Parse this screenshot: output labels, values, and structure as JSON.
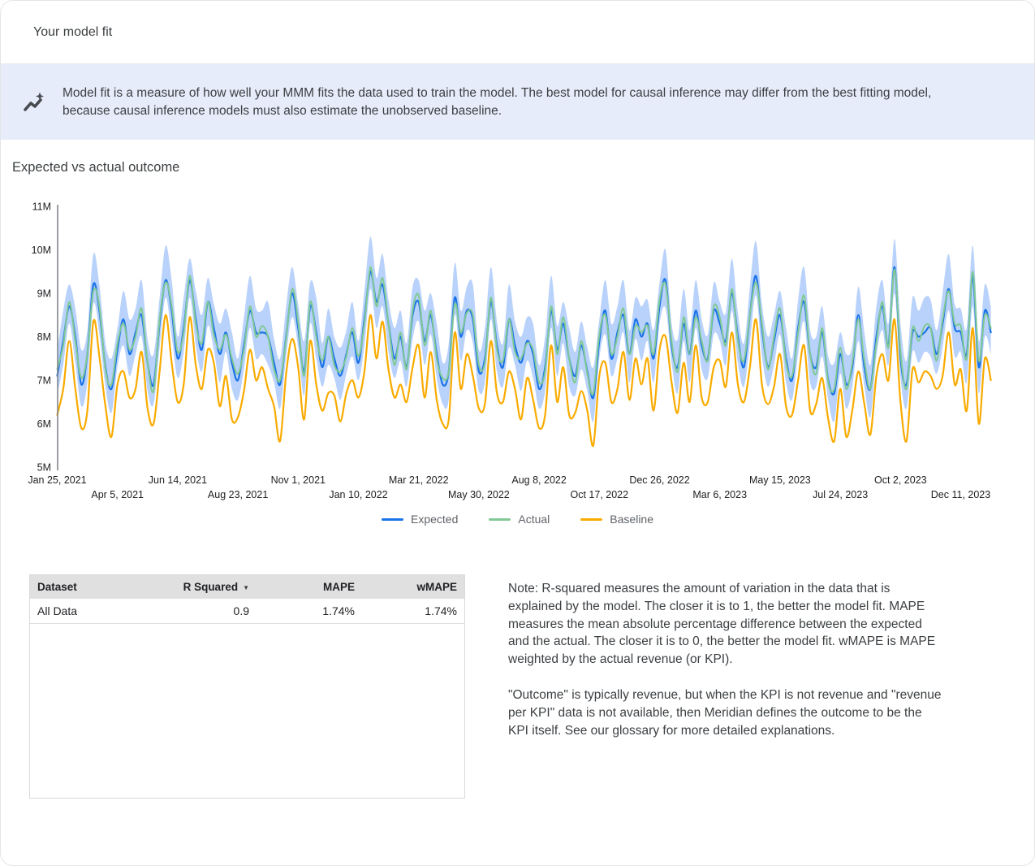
{
  "header": {
    "title": "Your model fit"
  },
  "banner": {
    "icon": "insights-icon",
    "icon_color": "#474B4F",
    "background": "#E6ECFA",
    "text": "Model fit is a measure of how well your MMM fits the data used to train the model. The best model for causal inference may differ from the best fitting model, because causal inference models must also estimate the unobserved baseline."
  },
  "section": {
    "title": "Expected vs actual outcome"
  },
  "chart_data": {
    "type": "line",
    "title": "Expected vs actual outcome",
    "x_unit": "weeks",
    "ylim": [
      5,
      11
    ],
    "y_tick_labels": [
      "11M",
      "10M",
      "9M",
      "8M",
      "7M",
      "6M",
      "5M"
    ],
    "y_tick_values": [
      11,
      10,
      9,
      8,
      7,
      6,
      5
    ],
    "grid": false,
    "legend_position": "bottom",
    "x_ticks_top": [
      {
        "week": 0,
        "label": "Jan 25, 2021"
      },
      {
        "week": 20,
        "label": "Jun 14, 2021"
      },
      {
        "week": 40,
        "label": "Nov 1, 2021"
      },
      {
        "week": 60,
        "label": "Mar 21, 2022"
      },
      {
        "week": 80,
        "label": "Aug 8, 2022"
      },
      {
        "week": 100,
        "label": "Dec 26, 2022"
      },
      {
        "week": 120,
        "label": "May 15, 2023"
      },
      {
        "week": 140,
        "label": "Oct 2, 2023"
      }
    ],
    "x_ticks_bottom": [
      {
        "week": 10,
        "label": "Apr 5, 2021"
      },
      {
        "week": 30,
        "label": "Aug 23, 2021"
      },
      {
        "week": 50,
        "label": "Jan 10, 2022"
      },
      {
        "week": 70,
        "label": "May 30, 2022"
      },
      {
        "week": 90,
        "label": "Oct 17, 2022"
      },
      {
        "week": 110,
        "label": "Mar 6, 2023"
      },
      {
        "week": 130,
        "label": "Jul 24, 2023"
      },
      {
        "week": 150,
        "label": "Dec 11, 2023"
      }
    ],
    "band": {
      "name": "Expected credible interval",
      "color": "#A8C7FA",
      "opacity": 0.8,
      "upper": [
        7.65,
        8.6,
        9.2,
        8.65,
        7.7,
        8.15,
        9.9,
        9.2,
        7.85,
        7.5,
        8.2,
        9.05,
        8.4,
        8.65,
        9.3,
        7.95,
        7.6,
        8.9,
        10.1,
        9.3,
        8.0,
        8.9,
        9.8,
        9.05,
        8.5,
        9.35,
        8.75,
        8.3,
        8.65,
        8.1,
        7.5,
        8.45,
        9.4,
        8.65,
        8.6,
        8.8,
        7.95,
        7.5,
        8.7,
        9.6,
        8.75,
        7.9,
        9.25,
        8.9,
        7.85,
        8.65,
        8.0,
        7.75,
        8.15,
        8.8,
        7.9,
        9.05,
        10.3,
        9.35,
        9.9,
        8.85,
        8.2,
        8.6,
        7.85,
        9.15,
        9.3,
        8.6,
        9.0,
        8.3,
        7.4,
        7.85,
        9.7,
        8.6,
        9.15,
        9.2,
        7.7,
        8.2,
        9.6,
        8.35,
        7.85,
        9.2,
        8.35,
        8.0,
        8.45,
        8.3,
        7.35,
        8.0,
        9.4,
        8.25,
        8.8,
        8.2,
        7.65,
        8.35,
        7.75,
        7.3,
        8.4,
        9.3,
        8.3,
        8.7,
        9.3,
        8.15,
        8.9,
        8.7,
        8.85,
        8.15,
        9.25,
        10.0,
        8.3,
        7.95,
        9.1,
        8.15,
        9.3,
        8.4,
        8.05,
        9.25,
        8.8,
        8.55,
        9.8,
        8.55,
        7.85,
        9.15,
        10.2,
        8.75,
        8.0,
        8.5,
        9.05,
        8.2,
        7.5,
        8.85,
        9.6,
        8.15,
        8.0,
        8.7,
        7.55,
        7.4,
        8.1,
        7.6,
        7.8,
        9.15,
        8.1,
        7.35,
        8.7,
        9.3,
        8.3,
        10.25,
        8.3,
        7.45,
        8.9,
        8.6,
        8.9,
        8.85,
        8.15,
        9.0,
        9.9,
        8.75,
        8.65,
        8.2,
        10.1,
        7.9,
        9.2,
        8.7
      ],
      "lower": [
        6.65,
        7.35,
        8.3,
        7.4,
        6.4,
        6.95,
        8.75,
        8.05,
        6.85,
        6.25,
        7.3,
        7.8,
        7.1,
        7.6,
        8.0,
        6.75,
        6.45,
        7.75,
        8.9,
        8.0,
        7.05,
        7.65,
        8.9,
        7.8,
        7.2,
        8.25,
        7.7,
        6.95,
        7.65,
        6.8,
        6.55,
        7.25,
        8.2,
        7.5,
        7.6,
        7.35,
        6.95,
        6.35,
        7.55,
        8.45,
        7.75,
        6.65,
        8.3,
        7.5,
        6.85,
        7.35,
        7.05,
        6.55,
        7.15,
        7.55,
        7.0,
        7.8,
        9.1,
        8.2,
        8.7,
        7.65,
        7.05,
        7.45,
        6.85,
        7.95,
        8.35,
        7.35,
        8.05,
        7.05,
        6.45,
        6.55,
        8.5,
        7.45,
        8.15,
        7.85,
        6.75,
        6.95,
        8.4,
        7.2,
        6.85,
        7.75,
        7.35,
        6.75,
        7.45,
        7.05,
        6.35,
        6.75,
        8.2,
        7.1,
        7.85,
        6.85,
        6.65,
        7.25,
        6.75,
        6.05,
        7.5,
        8.05,
        7.1,
        7.5,
        8.1,
        6.95,
        7.95,
        7.45,
        7.9,
        6.95,
        8.3,
        8.65,
        7.4,
        6.7,
        7.9,
        6.95,
        8.2,
        7.25,
        7.05,
        8.05,
        7.9,
        7.35,
        8.6,
        7.4,
        6.85,
        7.85,
        8.95,
        7.55,
        6.85,
        7.35,
        8.05,
        6.95,
        6.55,
        7.6,
        8.35,
        6.95,
        6.85,
        7.55,
        6.55,
        6.05,
        7.15,
        6.35,
        6.85,
        7.9,
        6.85,
        6.15,
        7.55,
        8.15,
        7.35,
        9.0,
        7.05,
        6.35,
        7.65,
        7.4,
        7.65,
        7.55,
        7.15,
        7.75,
        8.6,
        7.55,
        7.65,
        6.95,
        8.7,
        6.7,
        8.0,
        7.6
      ]
    },
    "series": [
      {
        "name": "Expected",
        "color": "#1A73E8",
        "values": [
          7.1,
          7.9,
          8.7,
          8.0,
          6.9,
          7.6,
          9.2,
          8.6,
          7.3,
          6.8,
          7.7,
          8.4,
          7.6,
          8.1,
          8.5,
          7.4,
          6.9,
          8.3,
          9.3,
          8.6,
          7.5,
          8.2,
          9.3,
          8.4,
          7.7,
          8.8,
          8.2,
          7.6,
          8.1,
          7.4,
          7.0,
          7.8,
          8.6,
          8.1,
          8.1,
          8.0,
          7.4,
          6.9,
          8.0,
          9.0,
          8.2,
          7.2,
          8.7,
          8.1,
          7.3,
          8.0,
          7.5,
          7.1,
          7.6,
          8.1,
          7.4,
          8.4,
          9.5,
          8.8,
          9.2,
          8.3,
          7.5,
          8.0,
          7.3,
          8.5,
          8.8,
          7.9,
          8.5,
          7.6,
          6.9,
          7.2,
          8.9,
          8.0,
          8.6,
          8.4,
          7.2,
          7.5,
          8.8,
          7.8,
          7.3,
          8.4,
          7.8,
          7.4,
          7.9,
          7.6,
          6.8,
          7.3,
          8.6,
          7.7,
          8.3,
          7.5,
          7.1,
          7.8,
          7.2,
          6.6,
          7.9,
          8.6,
          7.5,
          8.1,
          8.5,
          7.6,
          8.4,
          8.0,
          8.3,
          7.5,
          8.7,
          9.3,
          7.8,
          7.3,
          8.3,
          7.6,
          8.6,
          7.8,
          7.5,
          8.6,
          8.3,
          7.9,
          9.0,
          8.0,
          7.3,
          8.5,
          9.4,
          8.2,
          7.3,
          7.9,
          8.5,
          7.5,
          7.0,
          8.2,
          8.8,
          7.6,
          7.3,
          8.1,
          7.0,
          6.7,
          7.6,
          6.9,
          7.3,
          8.5,
          7.3,
          6.8,
          8.0,
          8.7,
          7.8,
          9.6,
          7.5,
          6.9,
          8.1,
          8.0,
          8.1,
          8.2,
          7.6,
          8.3,
          9.1,
          8.2,
          8.1,
          7.6,
          9.4,
          7.3,
          8.6,
          8.1
        ]
      },
      {
        "name": "Actual",
        "color": "#81C995",
        "values": [
          7.25,
          7.8,
          8.8,
          7.9,
          7.05,
          7.6,
          9.05,
          8.7,
          7.25,
          6.9,
          7.85,
          8.3,
          7.7,
          8.0,
          8.65,
          7.4,
          6.75,
          8.4,
          9.25,
          8.7,
          7.65,
          8.1,
          9.4,
          8.3,
          7.85,
          8.8,
          8.05,
          7.7,
          8.05,
          7.5,
          7.15,
          7.7,
          8.7,
          8.0,
          8.25,
          8.0,
          7.25,
          7.0,
          7.95,
          9.1,
          8.35,
          7.1,
          8.8,
          8.0,
          7.45,
          8.0,
          7.35,
          7.2,
          7.55,
          8.2,
          7.55,
          8.3,
          9.6,
          8.7,
          9.35,
          8.3,
          7.35,
          8.1,
          7.25,
          8.6,
          8.95,
          7.8,
          8.6,
          7.5,
          7.05,
          7.2,
          8.75,
          8.1,
          8.55,
          8.5,
          7.35,
          7.4,
          8.9,
          7.7,
          7.45,
          8.4,
          7.65,
          7.5,
          7.85,
          7.7,
          6.95,
          7.2,
          8.7,
          7.6,
          8.45,
          7.5,
          6.95,
          7.9,
          7.15,
          6.7,
          8.05,
          8.5,
          7.6,
          8.0,
          8.65,
          7.6,
          8.25,
          8.1,
          8.25,
          7.6,
          8.85,
          9.2,
          7.9,
          7.2,
          8.45,
          7.6,
          8.45,
          7.9,
          7.45,
          8.7,
          8.45,
          7.8,
          9.1,
          7.9,
          7.45,
          8.5,
          9.25,
          8.3,
          7.25,
          8.0,
          8.65,
          7.4,
          7.1,
          8.1,
          8.95,
          7.6,
          7.15,
          8.2,
          6.95,
          6.8,
          7.75,
          6.8,
          7.4,
          8.4,
          7.45,
          6.8,
          7.85,
          8.8,
          7.75,
          9.55,
          7.65,
          6.8,
          8.2,
          7.9,
          8.25,
          8.2,
          7.45,
          8.4,
          9.05,
          8.3,
          8.25,
          7.5,
          9.5,
          7.45,
          8.5,
          8.2
        ]
      },
      {
        "name": "Baseline",
        "color": "#F9AB00",
        "values": [
          6.2,
          6.8,
          7.9,
          6.8,
          5.9,
          6.3,
          8.35,
          7.55,
          6.4,
          5.7,
          6.9,
          7.2,
          6.6,
          6.8,
          7.65,
          6.35,
          6.0,
          7.2,
          8.5,
          7.4,
          6.5,
          6.9,
          8.45,
          7.35,
          6.8,
          7.7,
          7.4,
          6.4,
          7.1,
          6.1,
          6.15,
          6.75,
          7.7,
          7.0,
          7.3,
          6.8,
          6.4,
          5.6,
          7.15,
          7.95,
          7.3,
          6.1,
          7.9,
          6.9,
          6.3,
          6.7,
          6.65,
          6.05,
          6.7,
          7.0,
          6.6,
          7.2,
          8.5,
          7.5,
          8.35,
          7.25,
          6.6,
          6.9,
          6.5,
          7.3,
          7.8,
          6.6,
          7.65,
          6.55,
          6.0,
          6.1,
          8.1,
          6.8,
          7.6,
          7.1,
          6.35,
          6.45,
          7.9,
          6.7,
          6.5,
          7.2,
          6.8,
          6.1,
          7.05,
          6.55,
          5.9,
          6.2,
          7.8,
          6.5,
          7.3,
          6.2,
          6.25,
          6.75,
          6.3,
          5.5,
          7.1,
          7.4,
          6.5,
          6.8,
          7.65,
          6.55,
          7.5,
          6.9,
          7.5,
          6.3,
          7.7,
          8.0,
          6.95,
          6.25,
          7.4,
          6.5,
          7.8,
          6.6,
          6.5,
          7.3,
          7.45,
          6.85,
          8.1,
          6.9,
          6.5,
          7.3,
          8.4,
          6.9,
          6.45,
          6.85,
          7.6,
          6.4,
          6.2,
          7.0,
          7.8,
          6.3,
          6.45,
          7.05,
          6.1,
          5.6,
          6.8,
          5.7,
          6.3,
          7.2,
          6.45,
          5.75,
          7.1,
          7.6,
          7.0,
          8.4,
          6.5,
          5.6,
          7.25,
          6.95,
          7.2,
          7.1,
          6.8,
          7.1,
          8.1,
          6.9,
          7.25,
          6.3,
          8.2,
          6.0,
          7.5,
          7.0
        ]
      }
    ]
  },
  "table": {
    "columns": [
      {
        "label": "Dataset"
      },
      {
        "label": "R Squared",
        "sort": "desc"
      },
      {
        "label": "MAPE"
      },
      {
        "label": "wMAPE"
      }
    ],
    "rows": [
      [
        "All Data",
        "0.9",
        "1.74%",
        "1.74%"
      ]
    ]
  },
  "note": {
    "p1": "Note: R-squared measures the amount of variation in the data that is explained by the model. The closer it is to 1, the better the model fit. MAPE measures the mean absolute percentage difference between the expected and the actual. The closer it is to 0, the better the model fit. wMAPE is MAPE weighted by the actual revenue (or KPI).",
    "p2": "\"Outcome\" is typically revenue, but when the KPI is not revenue and \"revenue per KPI\" data is not available, then Meridian defines the outcome to be the KPI itself. See our glossary for more detailed explanations."
  }
}
